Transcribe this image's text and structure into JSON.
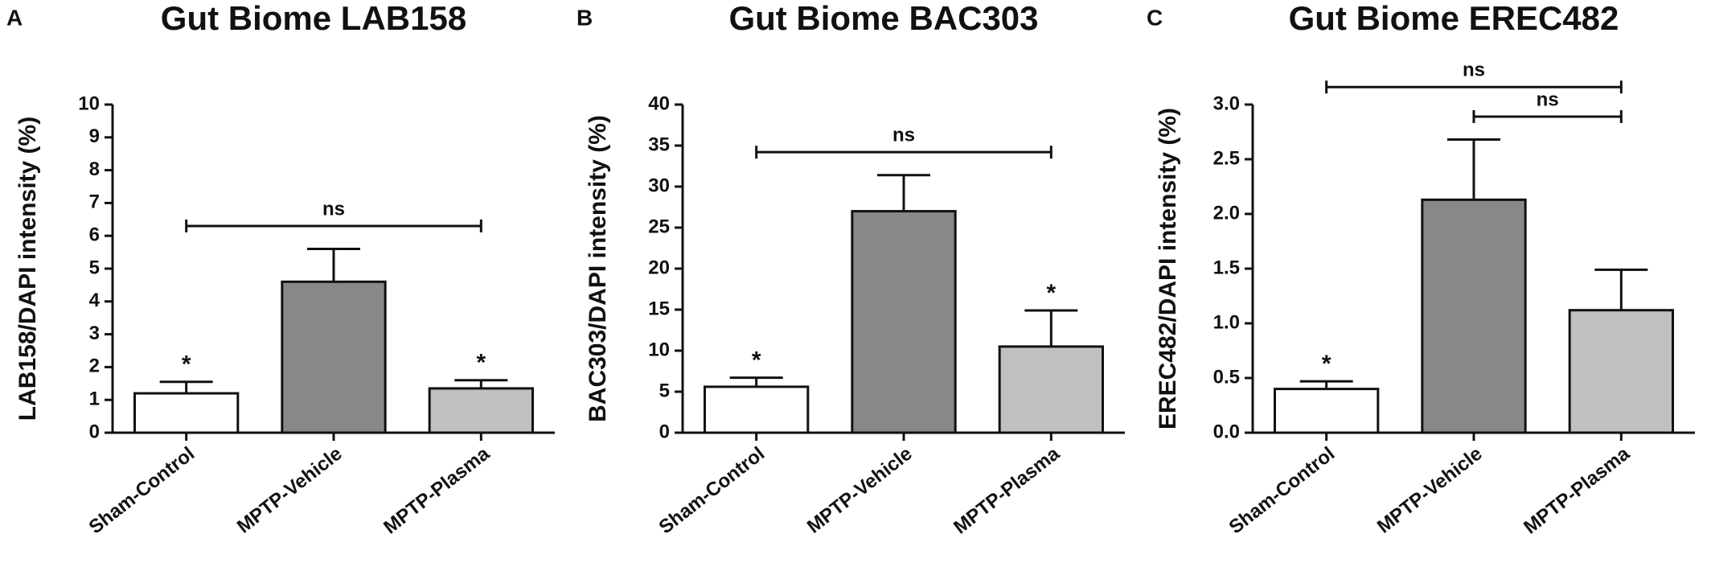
{
  "chart_data": [
    {
      "type": "bar",
      "panel": "A",
      "title": "Gut Biome LAB158",
      "y_label": "LAB158/DAPI intensity (%)",
      "categories": [
        "Sham-Control",
        "MPTP-Vehicle",
        "MPTP-Plasma"
      ],
      "values": [
        1.2,
        4.6,
        1.35
      ],
      "errors": [
        0.35,
        1.0,
        0.25
      ],
      "colors": [
        "#ffffff",
        "#888888",
        "#c0c0c0"
      ],
      "markers": [
        "*",
        null,
        "*"
      ],
      "ylim": [
        0,
        10
      ],
      "yticks": [
        0,
        1,
        2,
        3,
        4,
        5,
        6,
        7,
        8,
        9,
        10
      ],
      "annotations": [
        {
          "from": 0,
          "to": 2,
          "text": "ns"
        }
      ]
    },
    {
      "type": "bar",
      "panel": "B",
      "title": "Gut Biome BAC303",
      "y_label": "BAC303/DAPI intensity (%)",
      "categories": [
        "Sham-Control",
        "MPTP-Vehicle",
        "MPTP-Plasma"
      ],
      "values": [
        5.6,
        27,
        10.5
      ],
      "errors": [
        1.1,
        4.4,
        4.4
      ],
      "colors": [
        "#ffffff",
        "#888888",
        "#c0c0c0"
      ],
      "markers": [
        "*",
        null,
        "*"
      ],
      "ylim": [
        0,
        40
      ],
      "yticks": [
        0,
        5,
        10,
        15,
        20,
        25,
        30,
        35,
        40
      ],
      "annotations": [
        {
          "from": 0,
          "to": 2,
          "text": "ns"
        }
      ]
    },
    {
      "type": "bar",
      "panel": "C",
      "title": "Gut Biome EREC482",
      "y_label": "EREC482/DAPI intensity (%)",
      "categories": [
        "Sham-Control",
        "MPTP-Vehicle",
        "MPTP-Plasma"
      ],
      "values": [
        0.4,
        2.13,
        1.12
      ],
      "errors": [
        0.07,
        0.55,
        0.37
      ],
      "colors": [
        "#ffffff",
        "#888888",
        "#c0c0c0"
      ],
      "markers": [
        "*",
        null,
        null
      ],
      "ylim": [
        0,
        3
      ],
      "yticks": [
        {
          "value": 0,
          "label": "0.0"
        },
        {
          "value": 0.5,
          "label": "0.5"
        },
        {
          "value": 1,
          "label": "1.0"
        },
        {
          "value": 1.5,
          "label": "1.5"
        },
        {
          "value": 2,
          "label": "2.0"
        },
        {
          "value": 2.5,
          "label": "2.5"
        },
        {
          "value": 3,
          "label": "3.0"
        }
      ],
      "annotations": [
        {
          "from": 1,
          "to": 2,
          "text": "ns"
        },
        {
          "from": 0,
          "to": 2,
          "text": "ns"
        }
      ]
    }
  ]
}
